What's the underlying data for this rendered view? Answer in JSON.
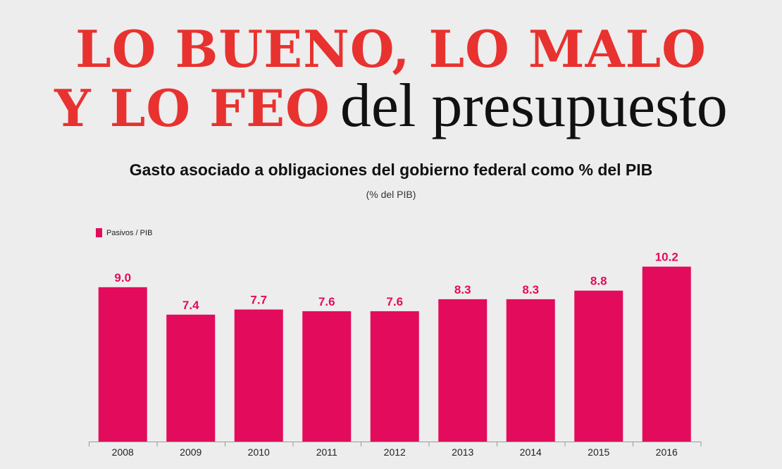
{
  "headline": {
    "line1": "LO BUENO, LO MALO",
    "line2_red": "Y LO FEO",
    "line2_black": "del presupuesto"
  },
  "colors": {
    "background": "#ededed",
    "headline_red": "#e8322f",
    "bar": "#e30b5c",
    "axis": "#999999"
  },
  "chart_data": {
    "type": "bar",
    "title": "Gasto asociado a obligaciones del gobierno federal como % del PIB",
    "subtitle": "(% del PIB)",
    "xlabel": "",
    "ylabel": "",
    "categories": [
      "2008",
      "2009",
      "2010",
      "2011",
      "2012",
      "2013",
      "2014",
      "2015",
      "2016"
    ],
    "series": [
      {
        "name": "Pasivos / PIB",
        "values": [
          9.0,
          7.4,
          7.7,
          7.6,
          7.6,
          8.3,
          8.3,
          8.8,
          10.2
        ]
      }
    ],
    "data_labels": [
      "9.0",
      "7.4",
      "7.7",
      "7.6",
      "7.6",
      "8.3",
      "8.3",
      "8.8",
      "10.2"
    ],
    "ylim": [
      0,
      10.2
    ],
    "grid": false,
    "legend": "top-left"
  }
}
